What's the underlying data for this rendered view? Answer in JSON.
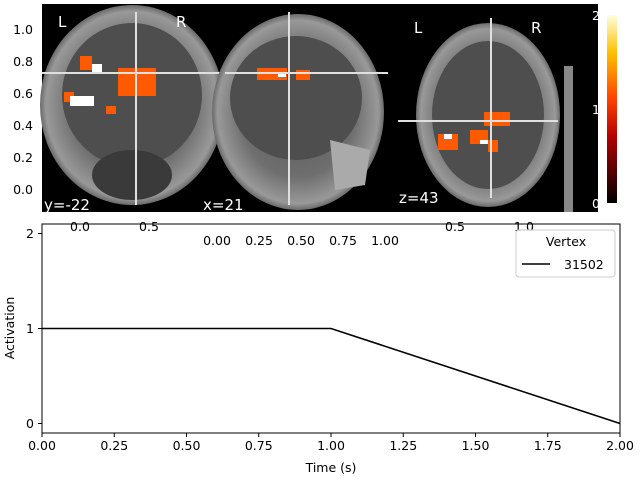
{
  "brain": {
    "panels": [
      {
        "orient_left": "L",
        "orient_right": "R",
        "coord": "y=-22"
      },
      {
        "coord": "x=21"
      },
      {
        "orient_left": "L",
        "orient_right": "R",
        "coord": "z=43"
      }
    ],
    "left_yaxis_ticks": [
      "1.0",
      "0.8",
      "0.6",
      "0.4",
      "0.2",
      "0.0"
    ],
    "left_xaxis_ticks": [
      "0.0",
      "0.5"
    ],
    "middle_xaxis_ticks": [
      "0.00",
      "0.25",
      "0.50",
      "0.75",
      "1.00"
    ],
    "right_xaxis_ticks": [
      "0.5",
      "1.0"
    ],
    "colorbar_ticks": [
      "2",
      "1",
      "0"
    ],
    "colorbar_range": [
      0,
      2
    ],
    "colors": {
      "activation": "#ff5a00",
      "background": "#000000"
    }
  },
  "chart_data": {
    "type": "line",
    "xlabel": "Time (s)",
    "ylabel": "Activation",
    "xlim": [
      0.0,
      2.0
    ],
    "ylim": [
      -0.1,
      2.1
    ],
    "x_ticks": [
      "0.00",
      "0.25",
      "0.50",
      "0.75",
      "1.00",
      "1.25",
      "1.50",
      "1.75",
      "2.00"
    ],
    "y_ticks": [
      "0",
      "1",
      "2"
    ],
    "legend_title": "Vertex",
    "legend_position": "top-right",
    "series": [
      {
        "name": "31502",
        "color": "#000000",
        "points": [
          {
            "x": 0.0,
            "y": 1
          },
          {
            "x": 1.0,
            "y": 1
          },
          {
            "x": 2.0,
            "y": 0
          }
        ]
      }
    ]
  }
}
